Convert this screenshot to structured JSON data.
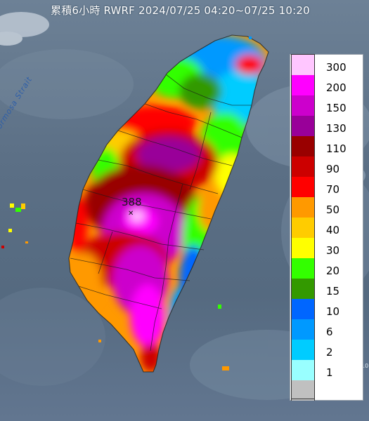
{
  "map": {
    "title": "累積6小時 RWRF 2024/07/25 04:20~07/25 10:20",
    "strait_label": "Formosa Strait",
    "peak_value": "388",
    "corner_label": "10"
  },
  "legend": {
    "items": [
      {
        "label": "300",
        "color": "#ffc6ff"
      },
      {
        "label": "200",
        "color": "#ff00ff"
      },
      {
        "label": "150",
        "color": "#cc00cc"
      },
      {
        "label": "130",
        "color": "#990099"
      },
      {
        "label": "110",
        "color": "#990000"
      },
      {
        "label": "90",
        "color": "#cc0000"
      },
      {
        "label": "70",
        "color": "#ff0000"
      },
      {
        "label": "50",
        "color": "#ff9900"
      },
      {
        "label": "40",
        "color": "#ffcc00"
      },
      {
        "label": "30",
        "color": "#ffff00"
      },
      {
        "label": "20",
        "color": "#33ff00"
      },
      {
        "label": "15",
        "color": "#339900"
      },
      {
        "label": "10",
        "color": "#0066ff"
      },
      {
        "label": "6",
        "color": "#0099ff"
      },
      {
        "label": "2",
        "color": "#00ccff"
      },
      {
        "label": "1",
        "color": "#99ffff"
      },
      {
        "label": "",
        "color": "#c0c0c0"
      }
    ]
  }
}
